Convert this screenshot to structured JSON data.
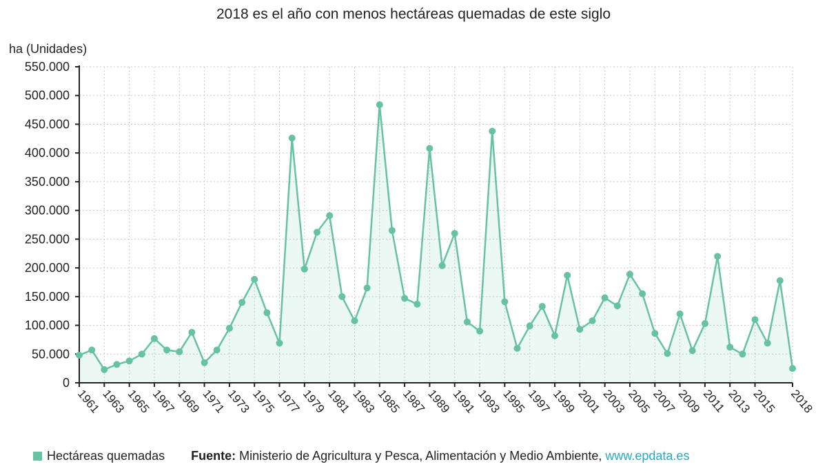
{
  "colors": {
    "series": "#66c2a2",
    "link": "#2aa7c0"
  },
  "legend": {
    "label": "Hectáreas quemadas"
  },
  "source": {
    "prefix": "Fuente:",
    "text": " Ministerio de Agricultura y Pesca, Alimentación y Medio Ambiente, ",
    "link": "www.epdata.es"
  },
  "chart_data": {
    "type": "area",
    "title": "2018 es el año con menos hectáreas quemadas de este siglo",
    "ylabel": "ha (Unidades)",
    "xlabel": "",
    "ylim": [
      0,
      550000
    ],
    "y_ticks": [
      "0",
      "50.000",
      "100.000",
      "150.000",
      "200.000",
      "250.000",
      "300.000",
      "350.000",
      "400.000",
      "450.000",
      "500.000",
      "550.000"
    ],
    "x_ticks": [
      "1961",
      "1963",
      "1965",
      "1967",
      "1969",
      "1971",
      "1973",
      "1975",
      "1977",
      "1979",
      "1981",
      "1983",
      "1985",
      "1987",
      "1989",
      "1991",
      "1993",
      "1995",
      "1997",
      "1999",
      "2001",
      "2003",
      "2005",
      "2007",
      "2009",
      "2011",
      "2013",
      "2015",
      "2018"
    ],
    "grid": true,
    "legend_position": "bottom-left",
    "series": [
      {
        "name": "Hectáreas quemadas",
        "x": [
          "1961",
          "1962",
          "1963",
          "1964",
          "1965",
          "1966",
          "1967",
          "1968",
          "1969",
          "1970",
          "1971",
          "1972",
          "1973",
          "1974",
          "1975",
          "1976",
          "1977",
          "1978",
          "1979",
          "1980",
          "1981",
          "1982",
          "1983",
          "1984",
          "1985",
          "1986",
          "1987",
          "1988",
          "1989",
          "1990",
          "1991",
          "1992",
          "1993",
          "1994",
          "1995",
          "1996",
          "1997",
          "1998",
          "1999",
          "2000",
          "2001",
          "2002",
          "2003",
          "2004",
          "2005",
          "2006",
          "2007",
          "2008",
          "2009",
          "2010",
          "2011",
          "2012",
          "2013",
          "2014",
          "2015",
          "2016",
          "2017",
          "2018"
        ],
        "values": [
          48000,
          57000,
          23000,
          32000,
          38000,
          50000,
          77000,
          57000,
          54000,
          88000,
          35000,
          57000,
          95000,
          140000,
          180000,
          122000,
          69000,
          426000,
          198000,
          262000,
          291000,
          150000,
          108000,
          165000,
          484000,
          265000,
          147000,
          137000,
          408000,
          204000,
          260000,
          106000,
          90000,
          438000,
          141000,
          60000,
          99000,
          133000,
          82000,
          187000,
          93000,
          108000,
          148000,
          134000,
          189000,
          155000,
          86000,
          51000,
          120000,
          56000,
          103000,
          220000,
          62000,
          50000,
          110000,
          69000,
          178000,
          25000
        ]
      }
    ]
  }
}
